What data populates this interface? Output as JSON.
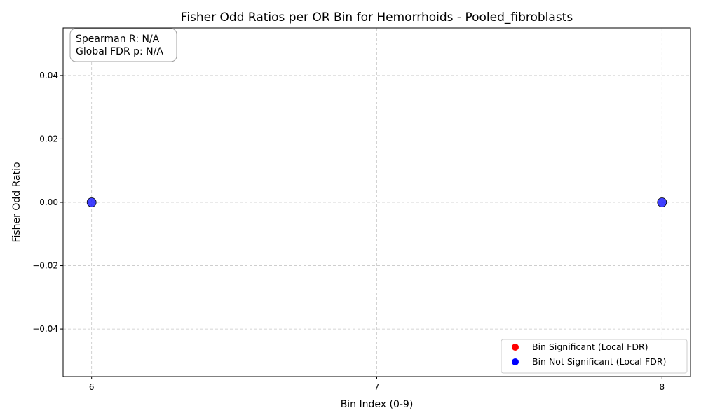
{
  "chart_data": {
    "type": "scatter",
    "title": "Fisher Odd Ratios per OR Bin for Hemorrhoids - Pooled_fibroblasts",
    "xlabel": "Bin Index (0-9)",
    "ylabel": "Fisher Odd Ratio",
    "xlim": [
      5.9,
      8.1
    ],
    "ylim": [
      -0.055,
      0.055
    ],
    "xticks": [
      6,
      7,
      8
    ],
    "xtick_labels": [
      "6",
      "7",
      "8"
    ],
    "yticks": [
      -0.04,
      -0.02,
      0.0,
      0.02,
      0.04
    ],
    "ytick_labels": [
      "−0.04",
      "−0.02",
      "0.00",
      "0.02",
      "0.04"
    ],
    "grid": true,
    "legend_position": "lower-right",
    "series": [
      {
        "name": "Bin Significant (Local FDR)",
        "color": "#ff0000",
        "x": [],
        "y": []
      },
      {
        "name": "Bin Not Significant (Local FDR)",
        "color": "#0000ff",
        "x": [
          6,
          8
        ],
        "y": [
          0.0,
          0.0
        ]
      }
    ],
    "annotation": {
      "lines": [
        "Spearman R: N/A",
        "Global FDR p: N/A"
      ],
      "position": "top-left"
    }
  }
}
